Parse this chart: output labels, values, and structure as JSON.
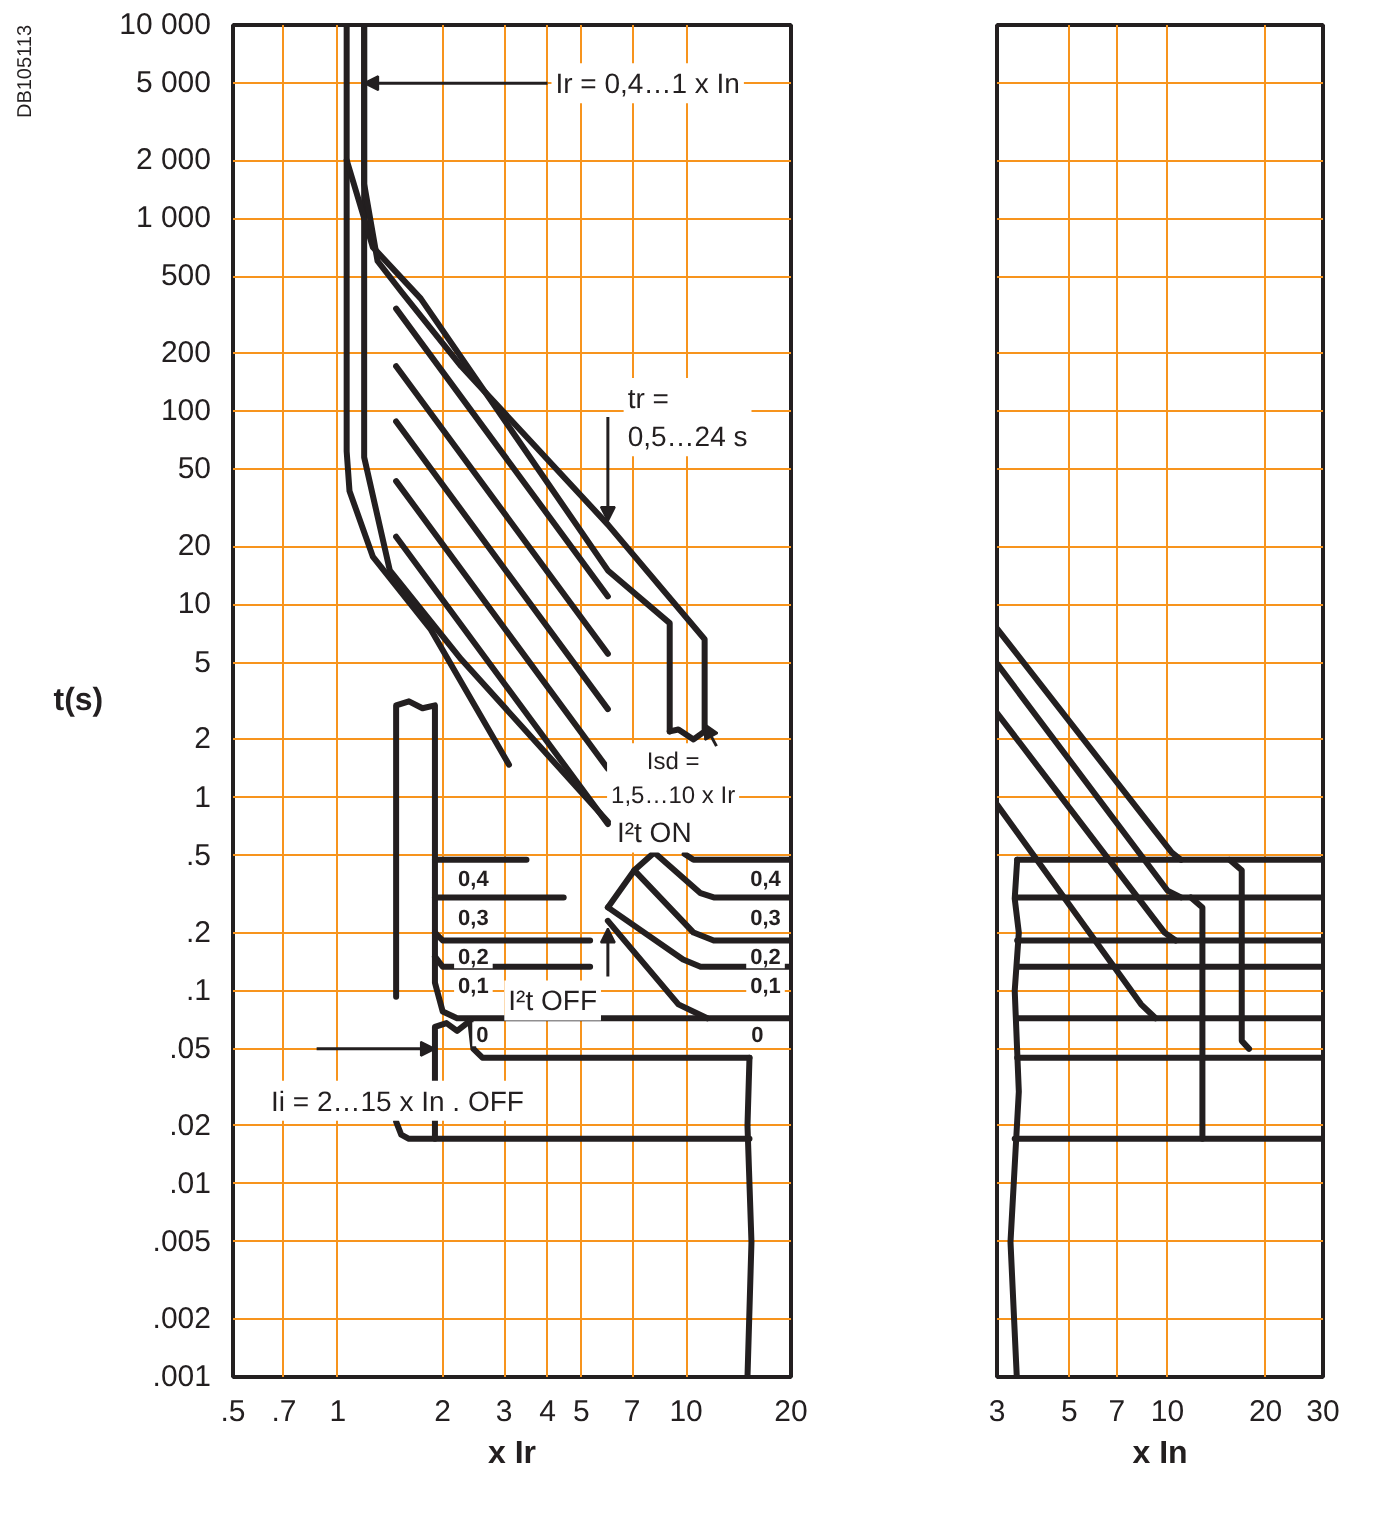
{
  "chart_data": [
    {
      "type": "line",
      "log": "xy",
      "grid": true,
      "xlabel": "x Ir",
      "ylabel": "t(s)",
      "xlim": [
        0.5,
        20
      ],
      "xticks": [
        {
          "value": 0.5,
          "label": ".5"
        },
        {
          "value": 0.7,
          "label": ".7"
        },
        1,
        2,
        3,
        4,
        5,
        7,
        10,
        20
      ],
      "ylim": [
        0.001,
        10000
      ],
      "yticks": [
        {
          "value": 10000,
          "label": "10 000"
        },
        {
          "value": 5000,
          "label": "5 000"
        },
        {
          "value": 2000,
          "label": "2 000"
        },
        {
          "value": 1000,
          "label": "1 000"
        },
        500,
        200,
        100,
        50,
        20,
        10,
        5,
        2,
        1,
        {
          "value": 0.5,
          "label": ".5"
        },
        {
          "value": 0.2,
          "label": ".2"
        },
        {
          "value": 0.1,
          "label": ".1"
        },
        {
          "value": 0.05,
          "label": ".05"
        },
        {
          "value": 0.02,
          "label": ".02"
        },
        {
          "value": 0.01,
          "label": ".01"
        },
        {
          "value": 0.005,
          "label": ".005"
        },
        {
          "value": 0.002,
          "label": ".002"
        },
        {
          "value": 0.001,
          "label": ".001"
        }
      ],
      "annotations": [
        "DB105113",
        {
          "text": "Ir = 0,4…1 x In",
          "x": 1.19,
          "y": 5000
        },
        {
          "text": "tr = 0,5…24 s",
          "x": 5.96,
          "y": 27
        },
        {
          "text": "Isd = 1,5…10 x Ir",
          "x": 11.3,
          "y": 2.4
        },
        {
          "text": "I²t ON",
          "x": 8.1,
          "y": 0.66
        },
        {
          "text": "I²t OFF",
          "x": 5.96,
          "y": 0.21
        },
        {
          "text": "Ii = 2…15 x In . OFF",
          "x": 1.9,
          "y": 0.05
        },
        {
          "text": "0,4",
          "x": 2.45,
          "y": 0.385
        },
        {
          "text": "0,3",
          "x": 2.45,
          "y": 0.24
        },
        {
          "text": "0,2",
          "x": 2.45,
          "y": 0.151
        },
        {
          "text": "0,1",
          "x": 2.45,
          "y": 0.107
        },
        {
          "text": "0",
          "x": 2.6,
          "y": 0.0595
        },
        {
          "text": "0,4",
          "x": 16.9,
          "y": 0.385
        },
        {
          "text": "0,3",
          "x": 16.9,
          "y": 0.24
        },
        {
          "text": "0,2",
          "x": 16.9,
          "y": 0.151
        },
        {
          "text": "0,1",
          "x": 16.9,
          "y": 0.107
        },
        {
          "text": "0",
          "x": 16.0,
          "y": 0.0595
        }
      ],
      "series": [
        {
          "color": "#231f20",
          "x": [
            1.06,
            1.06,
            1.08,
            1.26,
            1.85,
            3.1
          ],
          "values": [
            10000,
            62,
            38.7,
            17.7,
            7.4,
            1.48
          ]
        },
        {
          "color": "#231f20",
          "x": [
            1.19,
            1.19,
            1.41,
            2.26,
            5.96
          ],
          "values": [
            10000,
            57.8,
            15,
            5.2,
            0.75
          ]
        },
        {
          "color": "#231f20",
          "x": [
            1.06,
            1.26,
            1.73,
            5.96,
            8.97,
            8.97
          ],
          "values": [
            2000,
            708,
            383,
            15,
            8,
            2.2
          ]
        },
        {
          "color": "#231f20",
          "x": [
            1.19,
            1.19,
            1.3,
            1.53,
            2.26,
            5.96,
            11.3,
            11.3,
            10.5,
            9.5,
            8.97
          ],
          "values": [
            10000,
            1500,
            600,
            411,
            171,
            25.9,
            6.6,
            2.2,
            2.0,
            2.25,
            2.2
          ]
        },
        {
          "color": "#231f20",
          "x": [
            1.47,
            5.96
          ],
          "values": [
            340,
            11.0
          ]
        },
        {
          "color": "#231f20",
          "x": [
            1.47,
            5.96
          ],
          "values": [
            171,
            5.55
          ]
        },
        {
          "color": "#231f20",
          "x": [
            1.47,
            5.96
          ],
          "values": [
            88.5,
            2.87
          ]
        },
        {
          "color": "#231f20",
          "x": [
            1.47,
            5.96
          ],
          "values": [
            43.5,
            1.41
          ]
        },
        {
          "color": "#231f20",
          "x": [
            1.47,
            5.96
          ],
          "values": [
            22.4,
            0.73
          ]
        },
        {
          "color": "#231f20",
          "x": [
            1.47,
            1.47,
            1.6,
            1.75,
            1.9,
            1.9,
            2.0,
            2.2,
            20
          ],
          "values": [
            0.093,
            3.0,
            3.15,
            2.9,
            3.0,
            0.11,
            0.078,
            0.072,
            0.072
          ]
        },
        {
          "color": "#231f20",
          "x": [
            1.9,
            3.48
          ],
          "values": [
            0.476,
            0.476
          ]
        },
        {
          "color": "#231f20",
          "x": [
            1.9,
            4.45
          ],
          "values": [
            0.304,
            0.304
          ]
        },
        {
          "color": "#231f20",
          "x": [
            1.9,
            2.0,
            5.3
          ],
          "values": [
            0.2,
            0.182,
            0.182
          ]
        },
        {
          "color": "#231f20",
          "x": [
            1.9,
            2.0,
            5.3
          ],
          "values": [
            0.15,
            0.133,
            0.133
          ]
        },
        {
          "color": "#231f20",
          "x": [
            9.9,
            10.5,
            20
          ],
          "values": [
            0.51,
            0.476,
            0.476
          ]
        },
        {
          "color": "#231f20",
          "x": [
            7.1,
            8.1,
            11,
            12,
            20
          ],
          "values": [
            0.42,
            0.52,
            0.32,
            0.304,
            0.304
          ]
        },
        {
          "color": "#231f20",
          "x": [
            5.96,
            7.1,
            10.5,
            12,
            20
          ],
          "values": [
            0.27,
            0.42,
            0.2,
            0.182,
            0.182
          ]
        },
        {
          "color": "#231f20",
          "x": [
            5.96,
            9.8,
            11,
            20
          ],
          "values": [
            0.27,
            0.145,
            0.133,
            0.133
          ]
        },
        {
          "color": "#231f20",
          "x": [
            5.96,
            9.5,
            11.5
          ],
          "values": [
            0.23,
            0.085,
            0.072
          ]
        },
        {
          "color": "#231f20",
          "x": [
            2.4,
            2.45,
            2.6,
            15.2
          ],
          "values": [
            0.07,
            0.05,
            0.045,
            0.045
          ]
        },
        {
          "color": "#231f20",
          "x": [
            1.47,
            1.52,
            1.6,
            15.2
          ],
          "values": [
            0.021,
            0.018,
            0.0171,
            0.0171
          ]
        },
        {
          "color": "#231f20",
          "x": [
            2.4,
            2.2,
            2.05,
            1.9,
            1.9
          ],
          "values": [
            0.07,
            0.062,
            0.068,
            0.065,
            0.0171
          ]
        },
        {
          "color": "#231f20",
          "x": [
            15.2,
            15.0,
            15.4,
            15.0
          ],
          "values": [
            0.045,
            0.02,
            0.005,
            0.001
          ]
        }
      ]
    },
    {
      "type": "line",
      "log": "xy",
      "grid": true,
      "xlabel": "x In",
      "tick_labels": "x",
      "xlim": [
        3,
        30
      ],
      "xticks": [
        3,
        5,
        7,
        10,
        20,
        30
      ],
      "ylim": [
        0.001,
        10000
      ],
      "yticks": [
        {
          "value": 10000,
          "label": "10 000"
        },
        {
          "value": 5000,
          "label": "5 000"
        },
        {
          "value": 2000,
          "label": "2 000"
        },
        {
          "value": 1000,
          "label": "1 000"
        },
        500,
        200,
        100,
        50,
        20,
        10,
        5,
        2,
        1,
        {
          "value": 0.5,
          "label": ".5"
        },
        {
          "value": 0.2,
          "label": ".2"
        },
        {
          "value": 0.1,
          "label": ".1"
        },
        {
          "value": 0.05,
          "label": ".05"
        },
        {
          "value": 0.02,
          "label": ".02"
        },
        {
          "value": 0.01,
          "label": ".01"
        },
        {
          "value": 0.005,
          "label": ".005"
        },
        {
          "value": 0.002,
          "label": ".002"
        },
        {
          "value": 0.001,
          "label": ".001"
        }
      ],
      "series": [
        {
          "color": "#231f20",
          "x": [
            3.46,
            30
          ],
          "values": [
            0.476,
            0.476
          ]
        },
        {
          "color": "#231f20",
          "x": [
            3.46,
            30
          ],
          "values": [
            0.304,
            0.304
          ]
        },
        {
          "color": "#231f20",
          "x": [
            3.46,
            30
          ],
          "values": [
            0.182,
            0.182
          ]
        },
        {
          "color": "#231f20",
          "x": [
            3.46,
            30
          ],
          "values": [
            0.133,
            0.133
          ]
        },
        {
          "color": "#231f20",
          "x": [
            3.46,
            30
          ],
          "values": [
            0.072,
            0.072
          ]
        },
        {
          "color": "#231f20",
          "x": [
            3.46,
            30
          ],
          "values": [
            0.045,
            0.045
          ]
        },
        {
          "color": "#231f20",
          "x": [
            3.4,
            30
          ],
          "values": [
            0.0171,
            0.0171
          ]
        },
        {
          "color": "#231f20",
          "x": [
            3,
            10.3,
            11
          ],
          "values": [
            7.5,
            0.52,
            0.476
          ]
        },
        {
          "color": "#231f20",
          "x": [
            3,
            10,
            11
          ],
          "values": [
            4.94,
            0.33,
            0.304
          ]
        },
        {
          "color": "#231f20",
          "x": [
            3,
            9.8,
            10.6
          ],
          "values": [
            2.74,
            0.2,
            0.182
          ]
        },
        {
          "color": "#231f20",
          "x": [
            3,
            8.3,
            9.2
          ],
          "values": [
            0.92,
            0.085,
            0.072
          ]
        },
        {
          "color": "#231f20",
          "x": [
            11.8,
            12.8,
            12.8
          ],
          "values": [
            0.304,
            0.27,
            0.0171
          ]
        },
        {
          "color": "#231f20",
          "x": [
            15.5,
            16.9,
            16.9,
            17.8
          ],
          "values": [
            0.476,
            0.42,
            0.055,
            0.05
          ]
        },
        {
          "color": "#231f20",
          "x": [
            3.46,
            3.4,
            3.5,
            3.4,
            3.5,
            3.3,
            3.45
          ],
          "values": [
            0.476,
            0.3,
            0.2,
            0.1,
            0.03,
            0.005,
            0.001
          ]
        }
      ]
    }
  ]
}
